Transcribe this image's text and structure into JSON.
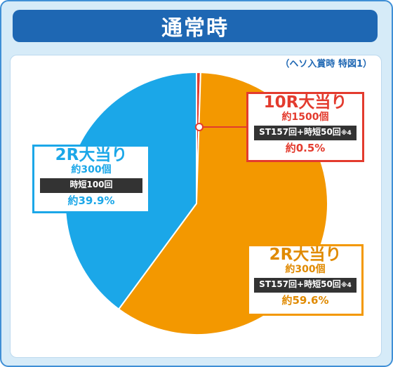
{
  "header": {
    "title": "通常時"
  },
  "note": "（ヘソ入賞時 特図1）",
  "chart_data": {
    "type": "pie",
    "title": "通常時",
    "subtitle": "（ヘソ入賞時 特図1）",
    "slices": [
      {
        "label": "10R大当り",
        "prize": "約1500個",
        "detail": "ST157回+時短50回",
        "detail_note": "※4",
        "value": 0.5,
        "pct_label": "約0.5%",
        "color": "#e33b2e"
      },
      {
        "label": "2R大当り",
        "prize": "約300個",
        "detail": "ST157回+時短50回",
        "detail_note": "※4",
        "value": 59.6,
        "pct_label": "約59.6%",
        "color": "#f39800"
      },
      {
        "label": "2R大当り",
        "prize": "約300個",
        "detail": "時短100回",
        "detail_note": "",
        "value": 39.9,
        "pct_label": "約39.9%",
        "color": "#1ba7e8"
      }
    ]
  }
}
